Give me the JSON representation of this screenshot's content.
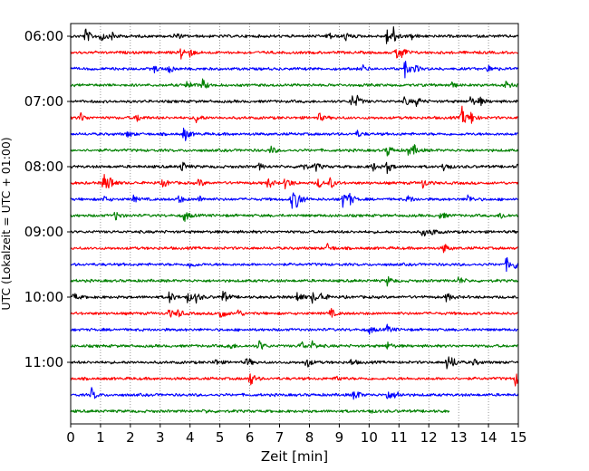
{
  "chart_data": {
    "type": "line",
    "title": "",
    "xlabel": "Zeit  [min]",
    "ylabel": "UTC (Lokalzeit = UTC + 01:00)",
    "xlim": [
      0,
      15
    ],
    "x_ticks": [
      0,
      1,
      2,
      3,
      4,
      5,
      6,
      7,
      8,
      9,
      10,
      11,
      12,
      13,
      14,
      15
    ],
    "y_tick_labels": [
      "06:00",
      "07:00",
      "08:00",
      "09:00",
      "10:00",
      "11:00"
    ],
    "grid": "vertical dotted at each minute",
    "line_colors": [
      "#000000",
      "#ff0000",
      "#0000ff",
      "#008000"
    ],
    "traces": [
      {
        "start": "05:45",
        "color": "#000000",
        "end_min": 15,
        "events": [
          [
            0.5,
            1.0
          ],
          [
            1.0,
            0.8
          ],
          [
            1.4,
            0.5
          ],
          [
            3.5,
            0.5
          ],
          [
            8.6,
            0.6
          ],
          [
            9.2,
            0.6
          ],
          [
            10.6,
            1.2
          ],
          [
            10.8,
            1.0
          ],
          [
            11.4,
            0.4
          ]
        ]
      },
      {
        "start": "06:00",
        "color": "#ff0000",
        "end_min": 15,
        "events": [
          [
            3.7,
            0.9
          ],
          [
            4.0,
            0.4
          ],
          [
            10.9,
            1.0
          ],
          [
            11.1,
            0.6
          ]
        ]
      },
      {
        "start": "06:15",
        "color": "#0000ff",
        "end_min": 15,
        "events": [
          [
            2.8,
            0.4
          ],
          [
            3.3,
            0.6
          ],
          [
            9.8,
            0.4
          ],
          [
            11.2,
            1.0
          ],
          [
            11.5,
            0.5
          ],
          [
            14.0,
            0.5
          ]
        ]
      },
      {
        "start": "06:30",
        "color": "#008000",
        "end_min": 15,
        "events": [
          [
            3.9,
            0.6
          ],
          [
            4.4,
            0.8
          ],
          [
            12.7,
            0.5
          ],
          [
            14.6,
            1.1
          ]
        ]
      },
      {
        "start": "06:45",
        "color": "#000000",
        "end_min": 15,
        "events": [
          [
            9.4,
            0.8
          ],
          [
            9.6,
            0.5
          ],
          [
            11.2,
            0.6
          ],
          [
            11.6,
            0.6
          ],
          [
            13.4,
            0.6
          ],
          [
            13.7,
            0.5
          ]
        ]
      },
      {
        "start": "07:00",
        "color": "#ff0000",
        "end_min": 15,
        "events": [
          [
            0.3,
            0.7
          ],
          [
            2.2,
            0.6
          ],
          [
            4.2,
            0.6
          ],
          [
            8.3,
            0.6
          ],
          [
            13.1,
            1.4
          ],
          [
            13.4,
            0.8
          ]
        ]
      },
      {
        "start": "07:15",
        "color": "#0000ff",
        "end_min": 15,
        "events": [
          [
            1.9,
            0.4
          ],
          [
            3.8,
            1.0
          ],
          [
            9.6,
            0.4
          ]
        ]
      },
      {
        "start": "07:30",
        "color": "#008000",
        "end_min": 15,
        "events": [
          [
            6.7,
            0.5
          ],
          [
            10.6,
            0.8
          ],
          [
            11.3,
            0.6
          ],
          [
            11.5,
            0.5
          ]
        ]
      },
      {
        "start": "07:45",
        "color": "#000000",
        "end_min": 15,
        "events": [
          [
            3.7,
            0.8
          ],
          [
            6.3,
            0.4
          ],
          [
            7.7,
            0.7
          ],
          [
            8.2,
            0.6
          ],
          [
            10.1,
            0.6
          ],
          [
            10.6,
            0.8
          ],
          [
            12.5,
            0.7
          ],
          [
            15.0,
            0.5
          ]
        ]
      },
      {
        "start": "08:00",
        "color": "#ff0000",
        "end_min": 15,
        "events": [
          [
            1.1,
            1.2
          ],
          [
            1.3,
            0.8
          ],
          [
            3.1,
            0.6
          ],
          [
            4.3,
            0.5
          ],
          [
            6.6,
            0.8
          ],
          [
            7.2,
            0.9
          ],
          [
            8.3,
            0.6
          ],
          [
            8.7,
            0.7
          ],
          [
            11.8,
            0.6
          ]
        ]
      },
      {
        "start": "08:15",
        "color": "#0000ff",
        "end_min": 15,
        "events": [
          [
            1.1,
            0.4
          ],
          [
            2.1,
            0.4
          ],
          [
            3.6,
            0.6
          ],
          [
            4.3,
            0.4
          ],
          [
            7.4,
            1.2
          ],
          [
            7.6,
            1.1
          ],
          [
            9.1,
            1.0
          ],
          [
            9.3,
            0.9
          ],
          [
            11.3,
            0.5
          ],
          [
            13.3,
            0.6
          ]
        ]
      },
      {
        "start": "08:30",
        "color": "#008000",
        "end_min": 15,
        "events": [
          [
            1.5,
            0.6
          ],
          [
            3.8,
            0.8
          ],
          [
            12.4,
            0.5
          ],
          [
            14.4,
            0.5
          ]
        ]
      },
      {
        "start": "08:45",
        "color": "#000000",
        "end_min": 15,
        "events": [
          [
            11.8,
            0.6
          ],
          [
            12.1,
            0.4
          ]
        ]
      },
      {
        "start": "09:00",
        "color": "#ff0000",
        "end_min": 15,
        "events": [
          [
            8.6,
            0.5
          ],
          [
            12.5,
            0.6
          ]
        ]
      },
      {
        "start": "09:15",
        "color": "#0000ff",
        "end_min": 15,
        "events": [
          [
            4.0,
            0.5
          ],
          [
            14.6,
            0.8
          ],
          [
            14.9,
            0.6
          ]
        ]
      },
      {
        "start": "09:30",
        "color": "#008000",
        "end_min": 15,
        "events": [
          [
            10.6,
            0.6
          ],
          [
            13.0,
            0.5
          ]
        ]
      },
      {
        "start": "09:45",
        "color": "#000000",
        "end_min": 15,
        "events": [
          [
            0.1,
            0.5
          ],
          [
            3.3,
            0.8
          ],
          [
            3.9,
            0.7
          ],
          [
            4.2,
            0.6
          ],
          [
            5.1,
            0.9
          ],
          [
            7.6,
            0.8
          ],
          [
            8.1,
            0.7
          ],
          [
            8.4,
            0.6
          ],
          [
            12.6,
            0.6
          ]
        ]
      },
      {
        "start": "10:00",
        "color": "#ff0000",
        "end_min": 15,
        "events": [
          [
            3.3,
            0.5
          ],
          [
            3.6,
            0.5
          ],
          [
            5.0,
            0.9
          ],
          [
            5.6,
            0.5
          ],
          [
            8.7,
            0.6
          ]
        ]
      },
      {
        "start": "10:15",
        "color": "#0000ff",
        "end_min": 15,
        "events": [
          [
            10.0,
            0.5
          ],
          [
            10.6,
            0.5
          ]
        ]
      },
      {
        "start": "10:30",
        "color": "#008000",
        "end_min": 15,
        "events": [
          [
            5.3,
            0.5
          ],
          [
            6.3,
            0.8
          ],
          [
            7.7,
            0.7
          ],
          [
            8.1,
            0.5
          ],
          [
            10.6,
            0.5
          ]
        ]
      },
      {
        "start": "10:45",
        "color": "#000000",
        "end_min": 15,
        "events": [
          [
            4.8,
            0.5
          ],
          [
            5.9,
            0.6
          ],
          [
            7.9,
            0.7
          ],
          [
            9.4,
            0.4
          ],
          [
            12.6,
            0.9
          ],
          [
            12.8,
            0.5
          ],
          [
            13.5,
            0.4
          ]
        ]
      },
      {
        "start": "11:00",
        "color": "#ff0000",
        "end_min": 15,
        "events": [
          [
            6.0,
            1.0
          ],
          [
            8.9,
            0.4
          ],
          [
            14.9,
            0.8
          ]
        ]
      },
      {
        "start": "11:15",
        "color": "#0000ff",
        "end_min": 15,
        "events": [
          [
            0.7,
            0.8
          ],
          [
            9.5,
            0.9
          ],
          [
            10.6,
            0.7
          ],
          [
            10.9,
            0.5
          ]
        ]
      },
      {
        "start": "11:30",
        "color": "#008000",
        "end_min": 12.7,
        "events": [
          [
            4.5,
            0.2
          ],
          [
            10.0,
            0.2
          ]
        ]
      }
    ]
  }
}
